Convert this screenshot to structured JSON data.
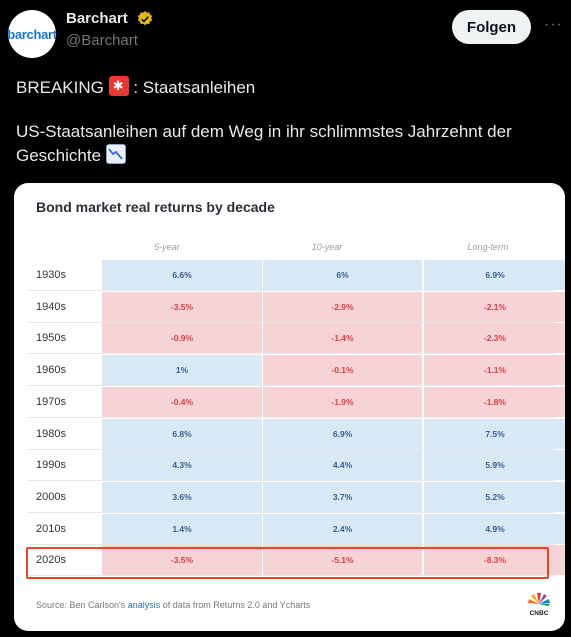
{
  "header": {
    "avatar_text": "barchart",
    "name": "Barchart",
    "handle": "@Barchart",
    "follow_label": "Folgen",
    "more_label": "···"
  },
  "tweet": {
    "line1_before": "BREAKING ",
    "line1_after": " : Staatsanleihen",
    "line2": "US-Staatsanleihen auf dem Weg in ihr schlimmstes Jahrzehnt der Geschichte "
  },
  "chart_data": {
    "type": "table",
    "title": "Bond market real returns by decade",
    "columns": [
      "5-year",
      "10-year",
      "Long-term"
    ],
    "rows": [
      {
        "label": "1930s",
        "values": [
          "6.6%",
          "6%",
          "6.9%"
        ]
      },
      {
        "label": "1940s",
        "values": [
          "-3.5%",
          "-2.9%",
          "-2.1%"
        ]
      },
      {
        "label": "1950s",
        "values": [
          "-0.9%",
          "-1.4%",
          "-2.3%"
        ]
      },
      {
        "label": "1960s",
        "values": [
          "1%",
          "-0.1%",
          "-1.1%"
        ]
      },
      {
        "label": "1970s",
        "values": [
          "-0.4%",
          "-1.9%",
          "-1.8%"
        ]
      },
      {
        "label": "1980s",
        "values": [
          "6.8%",
          "6.9%",
          "7.5%"
        ]
      },
      {
        "label": "1990s",
        "values": [
          "4.3%",
          "4.4%",
          "5.9%"
        ]
      },
      {
        "label": "2000s",
        "values": [
          "3.6%",
          "3.7%",
          "5.2%"
        ]
      },
      {
        "label": "2010s",
        "values": [
          "1.4%",
          "2.4%",
          "4.9%"
        ]
      },
      {
        "label": "2020s",
        "values": [
          "-3.5%",
          "-5.1%",
          "-8.3%"
        ]
      }
    ],
    "highlighted_row": "2020s",
    "colors": {
      "positive_bg": "#d9e8f5",
      "negative_bg": "#f6d4d5",
      "negative_text": "#d64045",
      "highlight": "#e8452c"
    }
  },
  "source": {
    "prefix": "Source: Ben Carlson's ",
    "link": "analysis",
    "suffix": " of data from Returns 2.0 and Ycharts",
    "logo": "CNBC"
  }
}
